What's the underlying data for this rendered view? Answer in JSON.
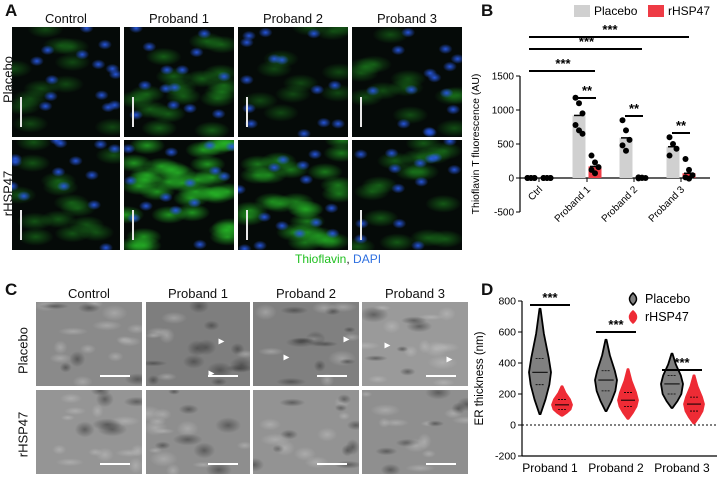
{
  "panels": {
    "A": {
      "letter": "A",
      "columns": [
        "Control",
        "Proband 1",
        "Proband 2",
        "Proband 3"
      ],
      "rows": [
        "Placebo",
        "rHSP47"
      ],
      "stain_legend": {
        "thioflavin": "Thioflavin",
        "sep": ",",
        "dapi": "DAPI"
      },
      "colors": {
        "thioflavin": "#1fbf1f",
        "dapi": "#2e6fe0"
      }
    },
    "B": {
      "letter": "B",
      "legend": [
        "Placebo",
        "rHSP47"
      ],
      "significance": {
        "ctrl_p1": "***",
        "ctrl_p2": "***",
        "ctrl_p3": "***",
        "p1": "**",
        "p2": "**",
        "p3": "**"
      },
      "colors": {
        "placebo": "#d0d0d0",
        "rhsp47": "#ee3b45"
      }
    },
    "C": {
      "letter": "C",
      "columns": [
        "Control",
        "Proband 1",
        "Proband 2",
        "Proband 3"
      ],
      "rows": [
        "Placebo",
        "rHSP47"
      ],
      "arrowheads": "▲"
    },
    "D": {
      "letter": "D",
      "legend": [
        "Placebo",
        "rHSP47"
      ],
      "significance": [
        "***",
        "***",
        "***"
      ],
      "colors": {
        "placebo": "#808080",
        "rhsp47": "#ee2b35"
      }
    }
  },
  "chart_data": [
    {
      "type": "bar",
      "panel": "B",
      "ylabel": "Thioflavin T fluorescence (AU)",
      "categories": [
        "Ctrl",
        "Proband 1",
        "Proband 2",
        "Proband 3"
      ],
      "ylim": [
        -500,
        1500
      ],
      "yticks": [
        -500,
        0,
        500,
        1000,
        1500
      ],
      "legend_position": "top",
      "series": [
        {
          "name": "Placebo",
          "values": [
            0,
            920,
            590,
            460
          ],
          "points": [
            [
              0,
              0,
              0,
              0,
              0,
              0
            ],
            [
              1180,
              1100,
              950,
              780,
              700,
              650
            ],
            [
              850,
              700,
              560,
              480,
              400
            ],
            [
              600,
              500,
              430,
              330
            ]
          ]
        },
        {
          "name": "rHSP47",
          "values": [
            0,
            170,
            5,
            70
          ],
          "points": [
            [
              0,
              0,
              0,
              0,
              0,
              0
            ],
            [
              330,
              230,
              160,
              120,
              70
            ],
            [
              10,
              5,
              0,
              -5,
              0
            ],
            [
              280,
              120,
              40,
              10,
              -10
            ]
          ]
        }
      ]
    },
    {
      "type": "violin",
      "panel": "D",
      "ylabel": "ER thickness (nm)",
      "categories": [
        "Proband 1",
        "Proband 2",
        "Proband 3"
      ],
      "ylim": [
        -200,
        800
      ],
      "yticks": [
        -200,
        0,
        200,
        400,
        600,
        800
      ],
      "legend_position": "top-right",
      "series": [
        {
          "name": "Placebo",
          "min": [
            70,
            90,
            110
          ],
          "q1": [
            260,
            220,
            200
          ],
          "median": [
            340,
            290,
            265
          ],
          "q3": [
            430,
            350,
            320
          ],
          "max": [
            750,
            550,
            460
          ]
        },
        {
          "name": "rHSP47",
          "min": [
            60,
            40,
            10
          ],
          "q1": [
            100,
            120,
            90
          ],
          "median": [
            130,
            160,
            135
          ],
          "q3": [
            165,
            210,
            180
          ],
          "max": [
            250,
            360,
            320
          ]
        }
      ]
    }
  ]
}
